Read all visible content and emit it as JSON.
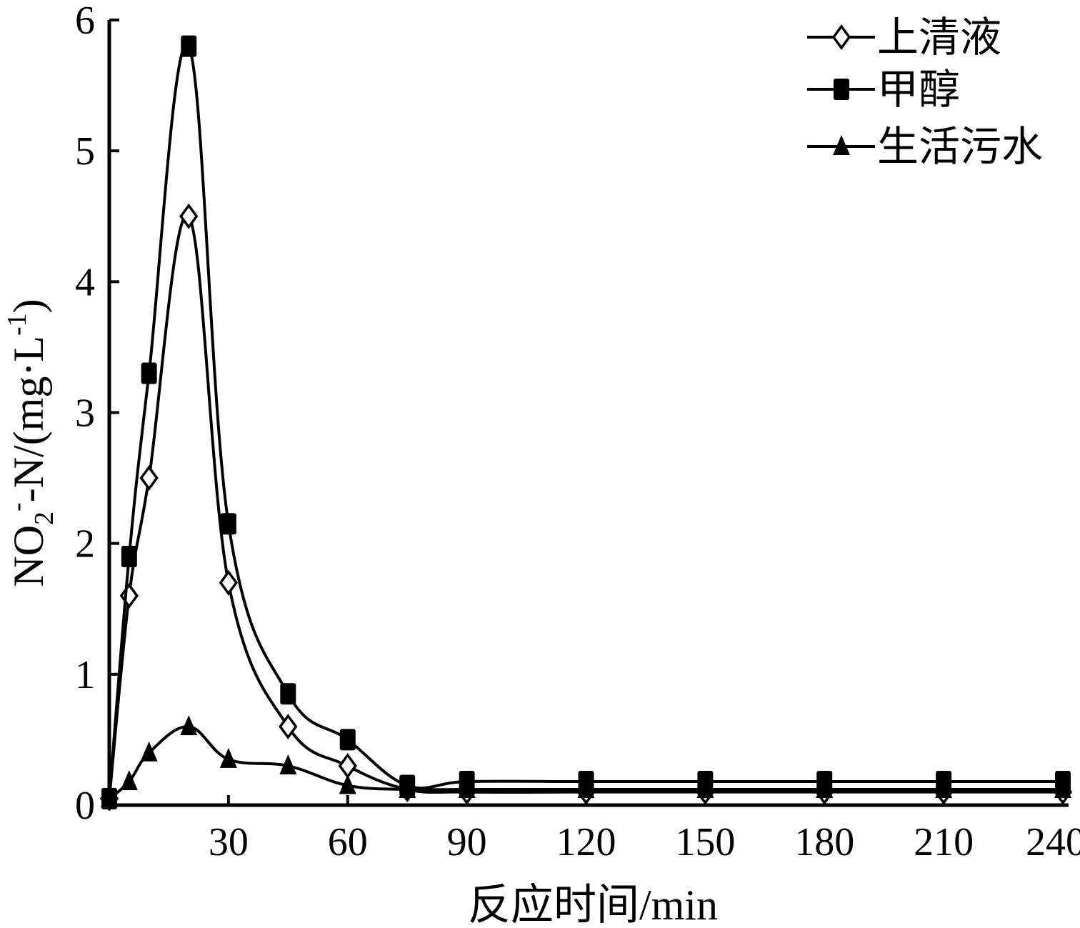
{
  "chart_data": {
    "type": "line",
    "xlabel": "反应时间/min",
    "ylabel": {
      "main": "NO",
      "sub": "2",
      "sup": "-",
      "rest": "-N/(mg·L",
      "unit_sup": "-1",
      "close": ")"
    },
    "xlim": [
      0,
      240
    ],
    "ylim": [
      0,
      6
    ],
    "x_ticks": [
      30,
      60,
      90,
      120,
      150,
      180,
      210,
      240
    ],
    "y_ticks": [
      0,
      1,
      2,
      3,
      4,
      5,
      6
    ],
    "grid": false,
    "legend_position": "top-right",
    "series": [
      {
        "name": "上清液",
        "marker": "diamond-open",
        "x": [
          0,
          5,
          10,
          20,
          30,
          45,
          60,
          75,
          90,
          120,
          150,
          180,
          210,
          240
        ],
        "y": [
          0.05,
          1.6,
          2.5,
          4.5,
          1.7,
          0.6,
          0.3,
          0.12,
          0.1,
          0.1,
          0.1,
          0.1,
          0.1,
          0.1
        ]
      },
      {
        "name": "甲醇",
        "marker": "square-filled",
        "x": [
          0,
          5,
          10,
          20,
          30,
          45,
          60,
          75,
          90,
          120,
          150,
          180,
          210,
          240
        ],
        "y": [
          0.05,
          1.9,
          3.3,
          5.8,
          2.15,
          0.85,
          0.5,
          0.15,
          0.18,
          0.18,
          0.18,
          0.18,
          0.18,
          0.18
        ]
      },
      {
        "name": "生活污水",
        "marker": "triangle-filled",
        "x": [
          0,
          5,
          10,
          20,
          30,
          45,
          60,
          75,
          90,
          120,
          150,
          180,
          210,
          240
        ],
        "y": [
          0.05,
          0.18,
          0.4,
          0.6,
          0.35,
          0.3,
          0.15,
          0.12,
          0.12,
          0.12,
          0.12,
          0.12,
          0.12,
          0.12
        ]
      }
    ]
  }
}
